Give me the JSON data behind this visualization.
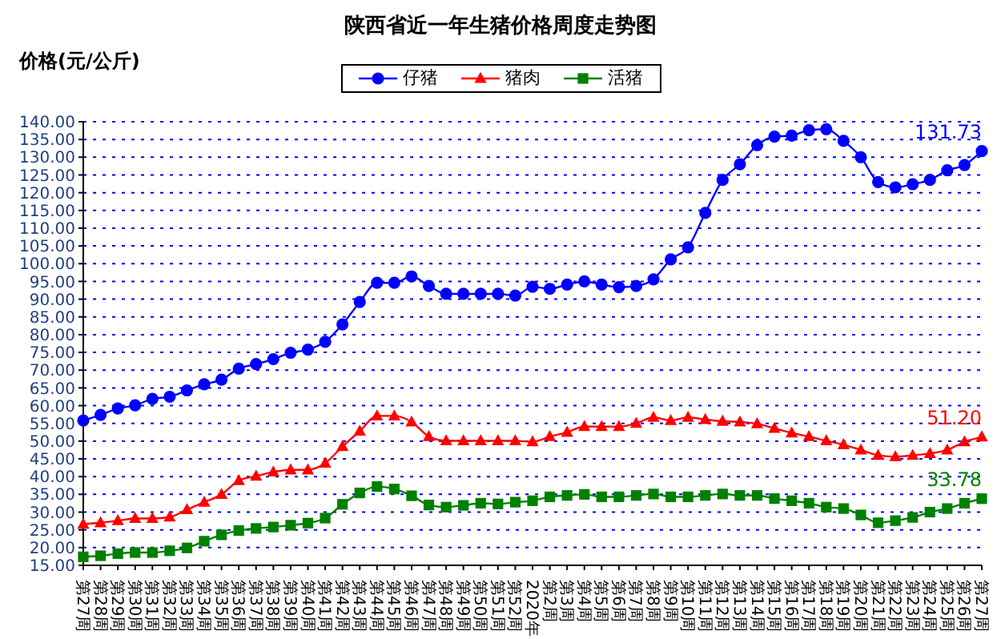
{
  "chart_data": {
    "type": "line",
    "title": "陕西省近一年生猪价格周度走势图",
    "ylabel": "价格(元/公斤)",
    "categories": [
      "第27周",
      "第28周",
      "第29周",
      "第30周",
      "第31周",
      "第32周",
      "第33周",
      "第34周",
      "第35周",
      "第36周",
      "第37周",
      "第38周",
      "第39周",
      "第40周",
      "第41周",
      "第42周",
      "第43周",
      "第44周",
      "第45周",
      "第46周",
      "第47周",
      "第48周",
      "第49周",
      "第50周",
      "第51周",
      "第52周",
      "2020年",
      "第2周",
      "第3周",
      "第4周",
      "第5周",
      "第6周",
      "第7周",
      "第8周",
      "第9周",
      "第10周",
      "第11周",
      "第12周",
      "第13周",
      "第14周",
      "第15周",
      "第16周",
      "第17周",
      "第18周",
      "第19周",
      "第20周",
      "第21周",
      "第22周",
      "第23周",
      "第24周",
      "第25周",
      "第26周",
      "第27周"
    ],
    "series": [
      {
        "name": "仔猪",
        "color": "#0000ff",
        "marker": "circle",
        "values": [
          55.8,
          57.4,
          59.2,
          60.1,
          61.9,
          62.5,
          64.3,
          66.0,
          67.3,
          70.4,
          71.7,
          73.1,
          74.9,
          75.8,
          78.0,
          82.9,
          89.2,
          94.6,
          94.6,
          96.4,
          93.7,
          91.5,
          91.5,
          91.5,
          91.5,
          91.0,
          93.5,
          92.9,
          94.1,
          95.0,
          94.1,
          93.4,
          93.7,
          95.6,
          101.2,
          104.6,
          114.3,
          123.6,
          128.0,
          133.4,
          135.8,
          136.1,
          137.6,
          137.9,
          134.6,
          130.0,
          123.0,
          121.5,
          122.4,
          123.6,
          126.3,
          127.8,
          131.73
        ],
        "value_labels": [
          null,
          null,
          null,
          null,
          null,
          null,
          null,
          null,
          null,
          null,
          null,
          null,
          null,
          null,
          null,
          null,
          null,
          null,
          null,
          null,
          null,
          null,
          null,
          null,
          null,
          null,
          null,
          null,
          null,
          null,
          null,
          null,
          null,
          null,
          null,
          null,
          null,
          null,
          null,
          null,
          null,
          null,
          null,
          null,
          null,
          null,
          null,
          null,
          null,
          null,
          null,
          null,
          "131.73"
        ]
      },
      {
        "name": "猪肉",
        "color": "#ff0000",
        "marker": "triangle",
        "values": [
          26.6,
          27.0,
          27.6,
          28.2,
          28.2,
          28.6,
          30.7,
          32.8,
          35.0,
          38.9,
          40.1,
          41.3,
          41.9,
          41.9,
          43.8,
          48.5,
          52.8,
          57.1,
          57.1,
          55.4,
          51.3,
          50.1,
          50.1,
          50.1,
          50.1,
          50.1,
          49.8,
          51.3,
          52.5,
          54.1,
          54.1,
          54.1,
          55.0,
          56.7,
          55.8,
          56.7,
          56.1,
          55.6,
          55.4,
          54.9,
          53.6,
          52.3,
          51.3,
          50.1,
          49.0,
          47.5,
          46.0,
          45.6,
          46.0,
          46.5,
          47.5,
          49.8,
          51.2
        ],
        "value_labels": [
          null,
          null,
          null,
          null,
          null,
          null,
          null,
          null,
          null,
          null,
          null,
          null,
          null,
          null,
          null,
          null,
          null,
          null,
          null,
          null,
          null,
          null,
          null,
          null,
          null,
          null,
          null,
          null,
          null,
          null,
          null,
          null,
          null,
          null,
          null,
          null,
          null,
          null,
          null,
          null,
          null,
          null,
          null,
          null,
          null,
          null,
          null,
          null,
          null,
          null,
          null,
          null,
          "51.20"
        ]
      },
      {
        "name": "活猪",
        "color": "#008000",
        "marker": "square",
        "values": [
          17.4,
          17.7,
          18.3,
          18.6,
          18.6,
          19.1,
          19.9,
          21.8,
          23.6,
          24.8,
          25.4,
          25.8,
          26.3,
          26.9,
          28.3,
          32.2,
          35.4,
          37.2,
          36.5,
          34.6,
          32.0,
          31.4,
          31.9,
          32.5,
          32.3,
          32.8,
          33.2,
          34.3,
          34.7,
          35.0,
          34.3,
          34.3,
          34.7,
          35.1,
          34.3,
          34.3,
          34.7,
          35.1,
          34.7,
          34.7,
          33.8,
          33.2,
          32.5,
          31.4,
          31.0,
          29.2,
          27.0,
          27.6,
          28.5,
          30.0,
          31.0,
          32.5,
          33.78
        ],
        "value_labels": [
          null,
          null,
          null,
          null,
          null,
          null,
          null,
          null,
          null,
          null,
          null,
          null,
          null,
          null,
          null,
          null,
          null,
          null,
          null,
          null,
          null,
          null,
          null,
          null,
          null,
          null,
          null,
          null,
          null,
          null,
          null,
          null,
          null,
          null,
          null,
          null,
          null,
          null,
          null,
          null,
          null,
          null,
          null,
          null,
          null,
          null,
          null,
          null,
          null,
          null,
          null,
          null,
          "33.78"
        ]
      }
    ],
    "ylim": [
      15,
      140
    ],
    "yticks": [
      {
        "value": 15,
        "label": "15.00"
      },
      {
        "value": 20,
        "label": "20.00"
      },
      {
        "value": 25,
        "label": "25.00"
      },
      {
        "value": 30,
        "label": "30.00"
      },
      {
        "value": 35,
        "label": "35.00"
      },
      {
        "value": 40,
        "label": "40.00"
      },
      {
        "value": 45,
        "label": "45.00"
      },
      {
        "value": 50,
        "label": "50.00"
      },
      {
        "value": 55,
        "label": "55.00"
      },
      {
        "value": 60,
        "label": "60.00"
      },
      {
        "value": 65,
        "label": "65.00"
      },
      {
        "value": 70,
        "label": "70.00"
      },
      {
        "value": 75,
        "label": "75.00"
      },
      {
        "value": 80,
        "label": "80.00"
      },
      {
        "value": 85,
        "label": "85.00"
      },
      {
        "value": 90,
        "label": "90.00"
      },
      {
        "value": 95,
        "label": "95.00"
      },
      {
        "value": 100,
        "label": "100.00"
      },
      {
        "value": 105,
        "label": "105.00"
      },
      {
        "value": 110,
        "label": "110.00"
      },
      {
        "value": 115,
        "label": "115.00"
      },
      {
        "value": 120,
        "label": "120.00"
      },
      {
        "value": 125,
        "label": "125.00"
      },
      {
        "value": 130,
        "label": "130.00"
      },
      {
        "value": 135,
        "label": "135.00"
      },
      {
        "value": 140,
        "label": "140.00"
      }
    ],
    "grid": "y",
    "legend": "top",
    "line_style": "solid"
  }
}
